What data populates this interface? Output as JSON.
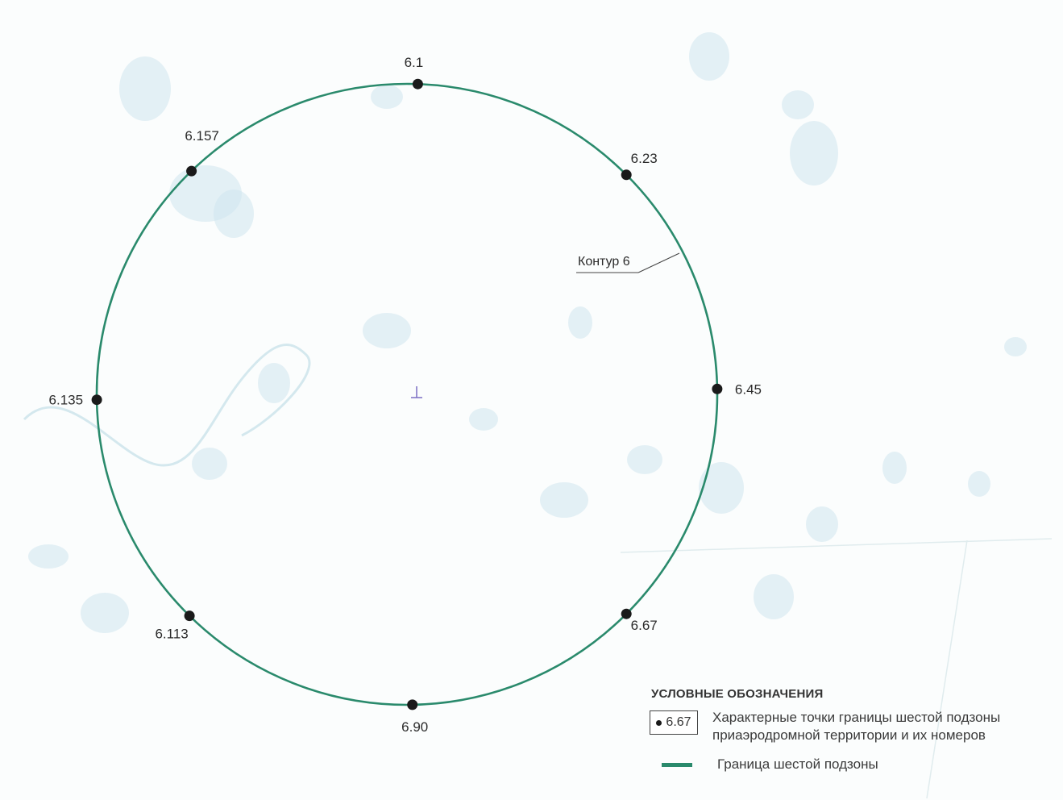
{
  "map": {
    "contour_label": "Контур 6",
    "boundary_color": "#2a8a6c",
    "point_color": "#1a1a1a",
    "center_marker_color": "#7b6fc4",
    "points": [
      {
        "id": "6.1",
        "angle_deg": -88
      },
      {
        "id": "6.23",
        "angle_deg": -45
      },
      {
        "id": "6.45",
        "angle_deg": -1
      },
      {
        "id": "6.67",
        "angle_deg": 45
      },
      {
        "id": "6.90",
        "angle_deg": 89
      },
      {
        "id": "6.113",
        "angle_deg": 134.5
      },
      {
        "id": "6.135",
        "angle_deg": 179
      },
      {
        "id": "6.157",
        "angle_deg": -134
      }
    ]
  },
  "legend": {
    "title": "УСЛОВНЫЕ ОБОЗНАЧЕНИЯ",
    "point_sample": "6.67",
    "point_description_line1": "Характерные точки границы шестой подзоны",
    "point_description_line2": "приаэродромной территории и их номеров",
    "line_description": "Граница шестой подзоны"
  }
}
